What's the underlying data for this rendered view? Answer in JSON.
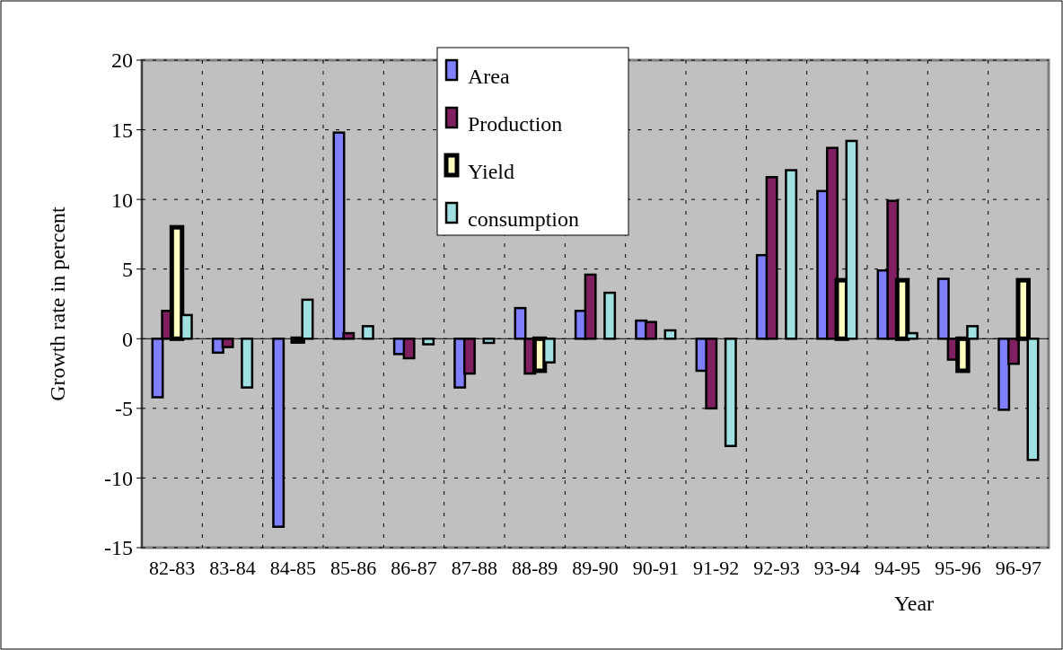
{
  "chart_data": {
    "type": "bar",
    "xlabel": "Year",
    "ylabel": "Growth rate in percent",
    "categories": [
      "82-83",
      "83-84",
      "84-85",
      "85-86",
      "86-87",
      "87-88",
      "88-89",
      "89-90",
      "90-91",
      "91-92",
      "92-93",
      "93-94",
      "94-95",
      "95-96",
      "96-97"
    ],
    "series": [
      {
        "name": "Area",
        "color": "#8080ff",
        "values": [
          -4.2,
          -1.0,
          -13.5,
          14.8,
          -1.1,
          -3.5,
          2.2,
          2.0,
          1.3,
          -2.3,
          6.0,
          10.6,
          4.9,
          4.3,
          -5.1
        ]
      },
      {
        "name": "Production",
        "color": "#802060",
        "values": [
          2.0,
          -0.6,
          null,
          0.4,
          -1.4,
          -2.5,
          -2.5,
          4.6,
          1.2,
          -5.0,
          11.6,
          13.7,
          9.9,
          -1.5,
          -1.8
        ]
      },
      {
        "name": "Yield",
        "color": "#ffffc0",
        "values": [
          8.0,
          null,
          -0.2,
          null,
          null,
          null,
          -2.3,
          null,
          null,
          null,
          null,
          4.2,
          4.2,
          -2.3,
          4.2
        ]
      },
      {
        "name": "consumption",
        "color": "#a0e0e0",
        "values": [
          1.7,
          -3.5,
          2.8,
          0.9,
          -0.4,
          -0.3,
          -1.7,
          3.3,
          0.6,
          -7.7,
          12.1,
          14.2,
          0.4,
          0.9,
          -8.7
        ]
      }
    ],
    "ylim": [
      -15,
      20
    ],
    "yticks": [
      -15,
      -10,
      -5,
      0,
      5,
      10,
      15,
      20
    ],
    "grid": true,
    "legend": "top"
  }
}
